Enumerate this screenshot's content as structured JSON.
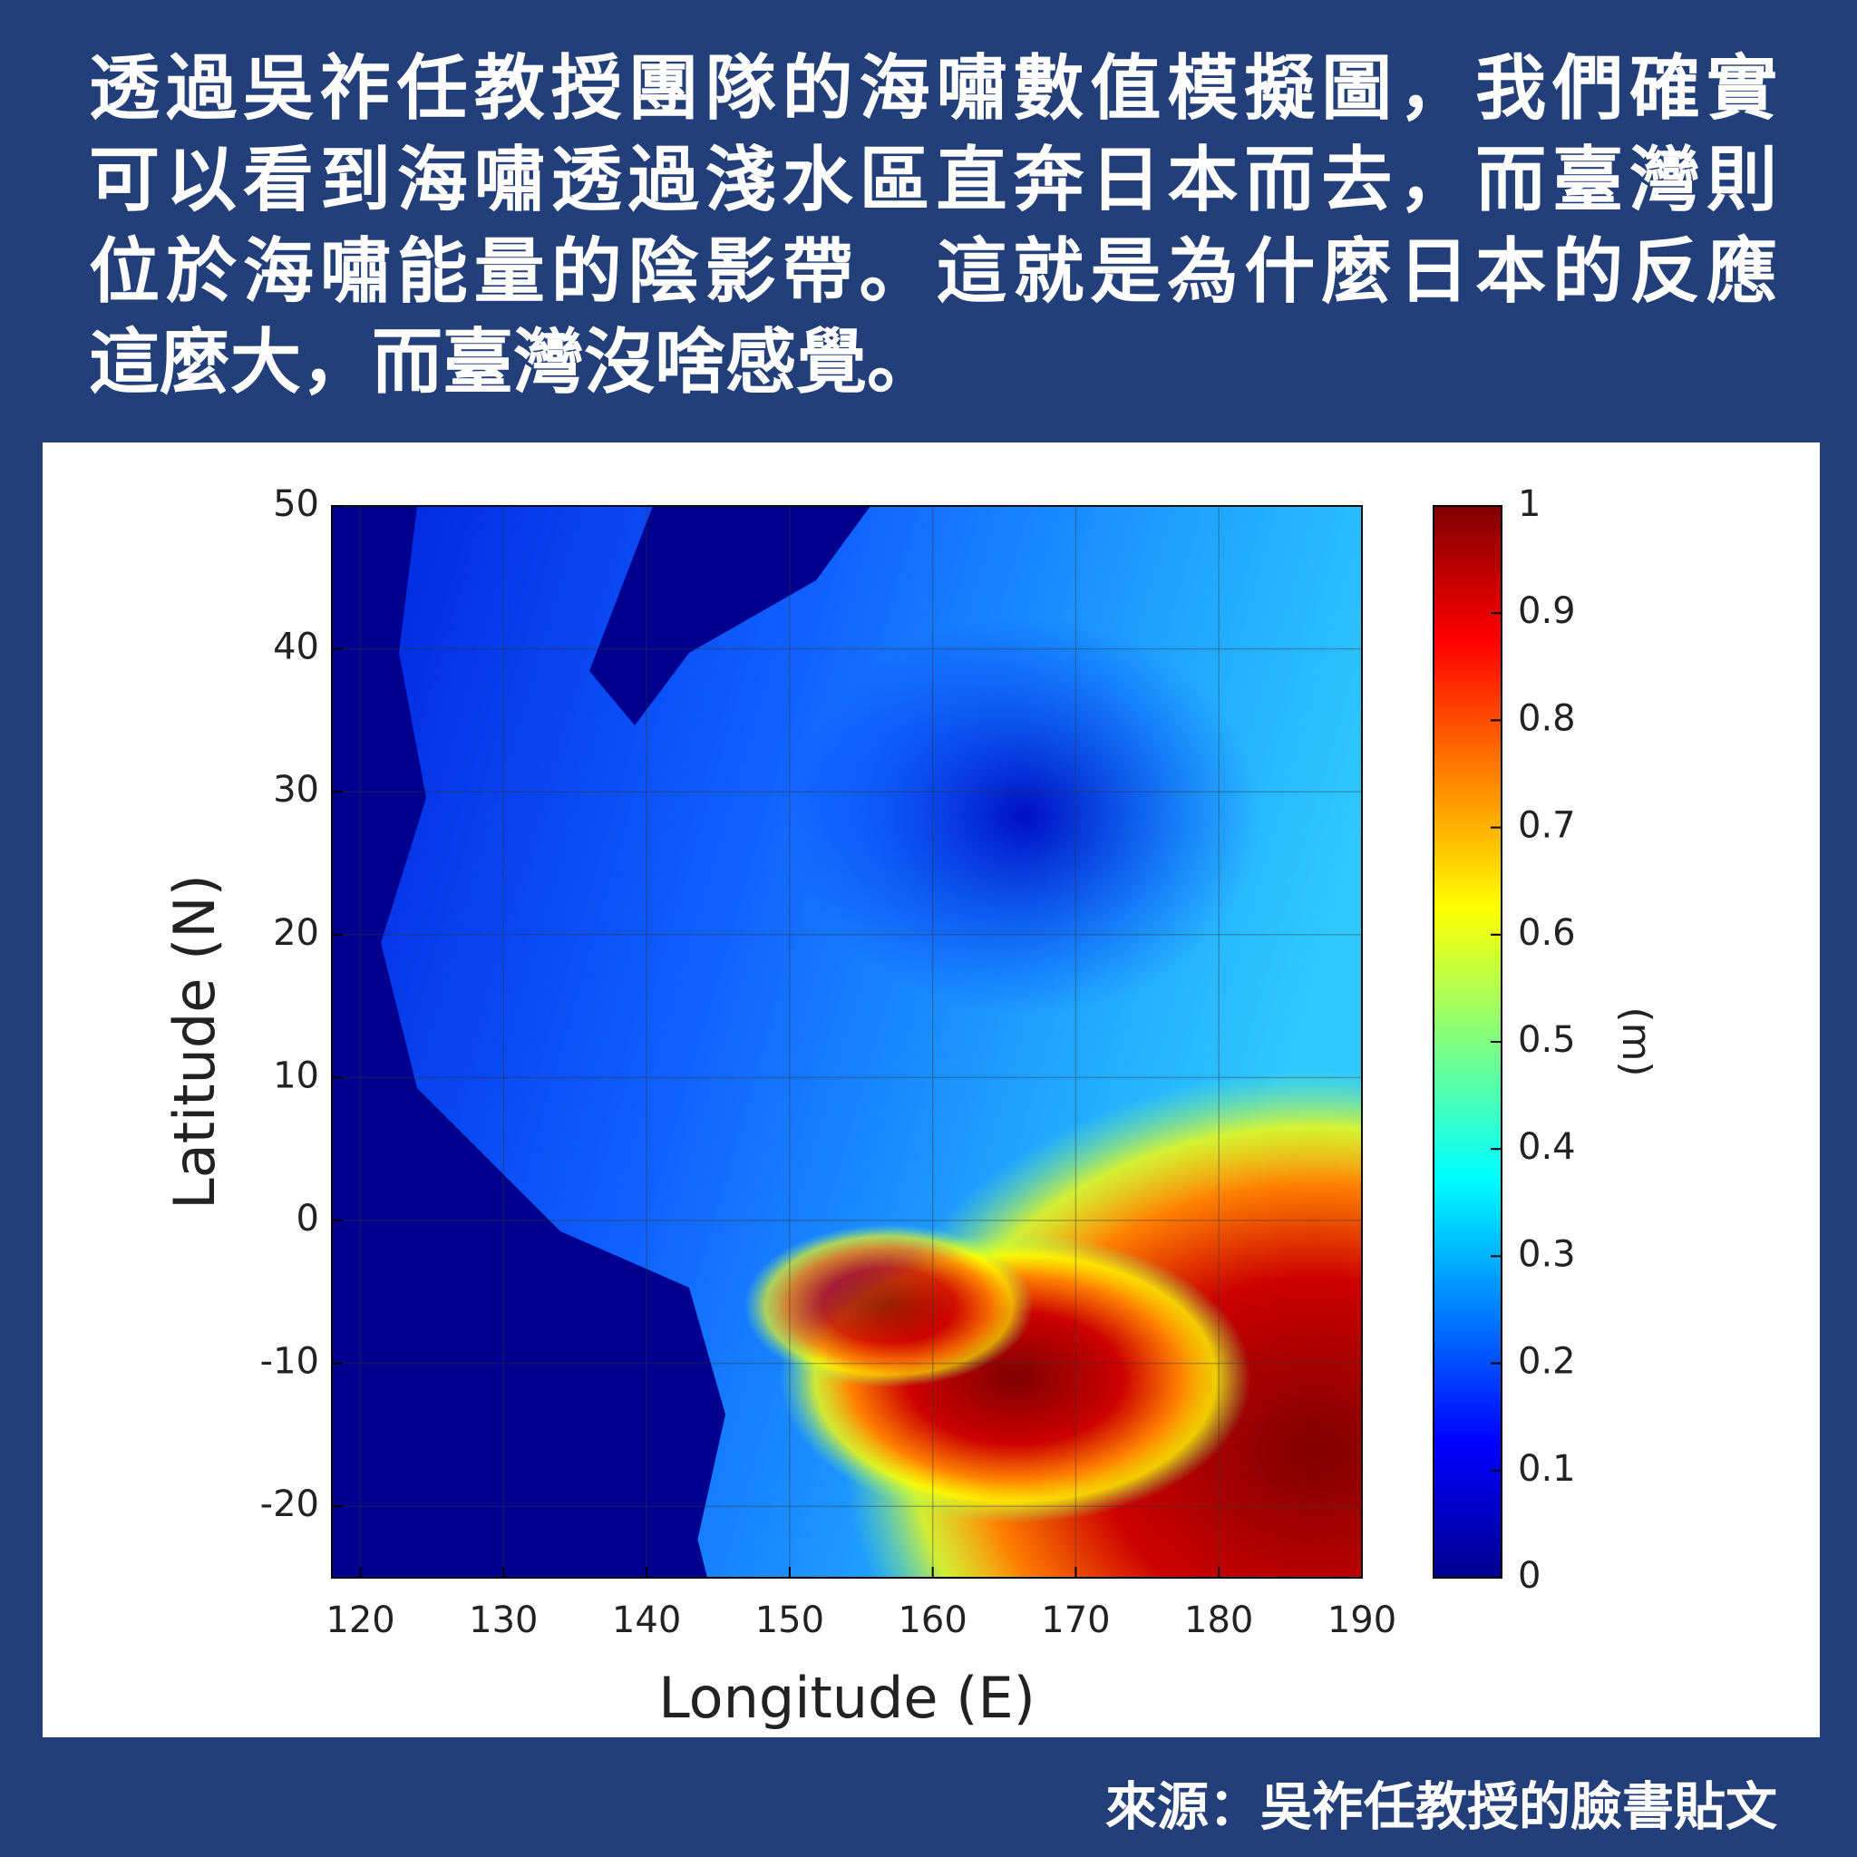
{
  "header": {
    "lines": [
      "透過吳祚任教授團隊的海嘯數值模擬圖，我們確實",
      "可以看到海嘯透過淺水區直奔日本而去，而臺灣則",
      "位於海嘯能量的陰影帶。這就是為什麼日本的反應",
      "這麼大，而臺灣沒啥感覺。"
    ]
  },
  "chart_data": {
    "type": "heatmap",
    "x_label": "Longitude (E)",
    "y_label": "Latitude (N)",
    "colorbar_label": "(m)",
    "xlim": [
      118,
      190
    ],
    "ylim": [
      -25,
      50
    ],
    "xticks": [
      120,
      130,
      140,
      150,
      160,
      170,
      180,
      190
    ],
    "yticks": [
      -20,
      -10,
      0,
      10,
      20,
      30,
      40,
      50
    ],
    "clim": [
      0,
      1
    ],
    "cticks": [
      0,
      0.1,
      0.2,
      0.3,
      0.4,
      0.5,
      0.6,
      0.7,
      0.8,
      0.9,
      1
    ],
    "colormap": [
      "#00008f",
      "#0000ff",
      "#0080ff",
      "#00ffff",
      "#80ff80",
      "#ffff00",
      "#ff8000",
      "#ff0000",
      "#800000"
    ],
    "grid": true
  },
  "source": "來源：吳祚任教授的臉書貼文"
}
